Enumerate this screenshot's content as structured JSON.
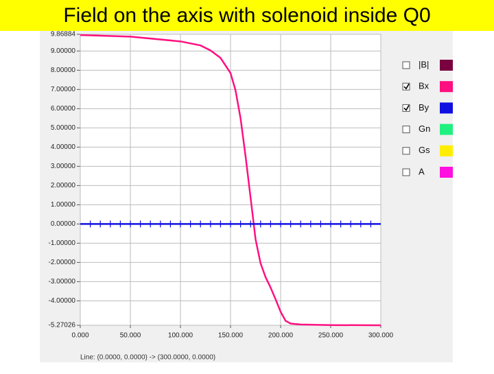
{
  "title": "Field on the axis with solenoid inside Q0",
  "chart_data": {
    "type": "line",
    "status": "Line: (0.0000, 0.0000) -> (300.0000, 0.0000)",
    "xlim": [
      0,
      300
    ],
    "xticks": [
      {
        "value": 0,
        "label": "0.000"
      },
      {
        "value": 50,
        "label": "50.000"
      },
      {
        "value": 100,
        "label": "100.000"
      },
      {
        "value": 150,
        "label": "150.000"
      },
      {
        "value": 200,
        "label": "200.000"
      },
      {
        "value": 250,
        "label": "250.000"
      },
      {
        "value": 300,
        "label": "300.000"
      }
    ],
    "ylim": [
      -5.27026,
      9.86884
    ],
    "yticks": [
      {
        "value": 9.86884,
        "label": "9.86884"
      },
      {
        "value": 9,
        "label": "9.00000"
      },
      {
        "value": 8,
        "label": "8.00000"
      },
      {
        "value": 7,
        "label": "7.00000"
      },
      {
        "value": 6,
        "label": "6.00000"
      },
      {
        "value": 5,
        "label": "5.00000"
      },
      {
        "value": 4,
        "label": "4.00000"
      },
      {
        "value": 3,
        "label": "3.00000"
      },
      {
        "value": 2,
        "label": "2.00000"
      },
      {
        "value": 1,
        "label": "1.00000"
      },
      {
        "value": 0,
        "label": "0.00000"
      },
      {
        "value": -1,
        "label": "-1.00000"
      },
      {
        "value": -2,
        "label": "-2.00000"
      },
      {
        "value": -3,
        "label": "-3.00000"
      },
      {
        "value": -4,
        "label": "-4.00000"
      },
      {
        "value": -5.27026,
        "label": "-5.27026"
      }
    ],
    "grid": true,
    "series": [
      {
        "name": "|B|",
        "color": "#7a0040",
        "checked": false
      },
      {
        "name": "Bx",
        "color": "#ff1080",
        "checked": true,
        "x": [
          0,
          50,
          100,
          120,
          130,
          140,
          150,
          155,
          160,
          165,
          170,
          175,
          180,
          185,
          190,
          195,
          200,
          205,
          210,
          220,
          250,
          300
        ],
        "values": [
          9.83,
          9.75,
          9.5,
          9.29,
          9.03,
          8.64,
          7.85,
          6.95,
          5.5,
          3.53,
          1.37,
          -0.8,
          -2.05,
          -2.77,
          -3.31,
          -3.92,
          -4.57,
          -5.04,
          -5.18,
          -5.23,
          -5.26,
          -5.27
        ]
      },
      {
        "name": "By",
        "color": "#1010e0",
        "checked": true,
        "x": [
          0,
          10,
          20,
          30,
          40,
          50,
          60,
          70,
          80,
          90,
          100,
          110,
          120,
          130,
          140,
          150,
          160,
          170,
          180,
          190,
          200,
          210,
          220,
          230,
          240,
          250,
          260,
          270,
          280,
          290,
          300
        ],
        "values": [
          0,
          0,
          0,
          0,
          0,
          0,
          0,
          0,
          0,
          0,
          0,
          0,
          0,
          0,
          0,
          0,
          0,
          0,
          0,
          0,
          0,
          0,
          0,
          0,
          0,
          0,
          0,
          0,
          0,
          0,
          0
        ]
      },
      {
        "name": "Gn",
        "color": "#20f080",
        "checked": false
      },
      {
        "name": "Gs",
        "color": "#ffee00",
        "checked": false
      },
      {
        "name": "A",
        "color": "#ff10e0",
        "checked": false
      }
    ]
  }
}
